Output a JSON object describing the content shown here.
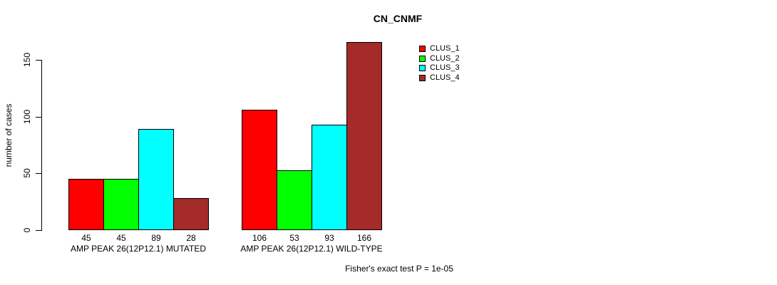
{
  "chart_data": {
    "type": "bar",
    "title": "CN_CNMF",
    "ylabel": "number of cases",
    "xlabel": "",
    "categories": [
      "AMP PEAK 26(12P12.1) MUTATED",
      "AMP PEAK 26(12P12.1) WILD-TYPE"
    ],
    "series": [
      {
        "name": "CLUS_1",
        "color": "#FF0000",
        "values": [
          45,
          106
        ]
      },
      {
        "name": "CLUS_2",
        "color": "#00FF00",
        "values": [
          45,
          53
        ]
      },
      {
        "name": "CLUS_3",
        "color": "#00FFFF",
        "values": [
          89,
          93
        ]
      },
      {
        "name": "CLUS_4",
        "color": "#A52A2A",
        "values": [
          28,
          166
        ]
      }
    ],
    "yticks": [
      0,
      50,
      100,
      150
    ],
    "ylim": [
      0,
      170
    ],
    "bar_value_labels": [
      [
        45,
        45,
        89,
        28
      ],
      [
        106,
        53,
        93,
        166
      ]
    ],
    "legend_position": "top-right",
    "grid": false,
    "annotation": "Fisher's exact test P = 1e-05"
  }
}
